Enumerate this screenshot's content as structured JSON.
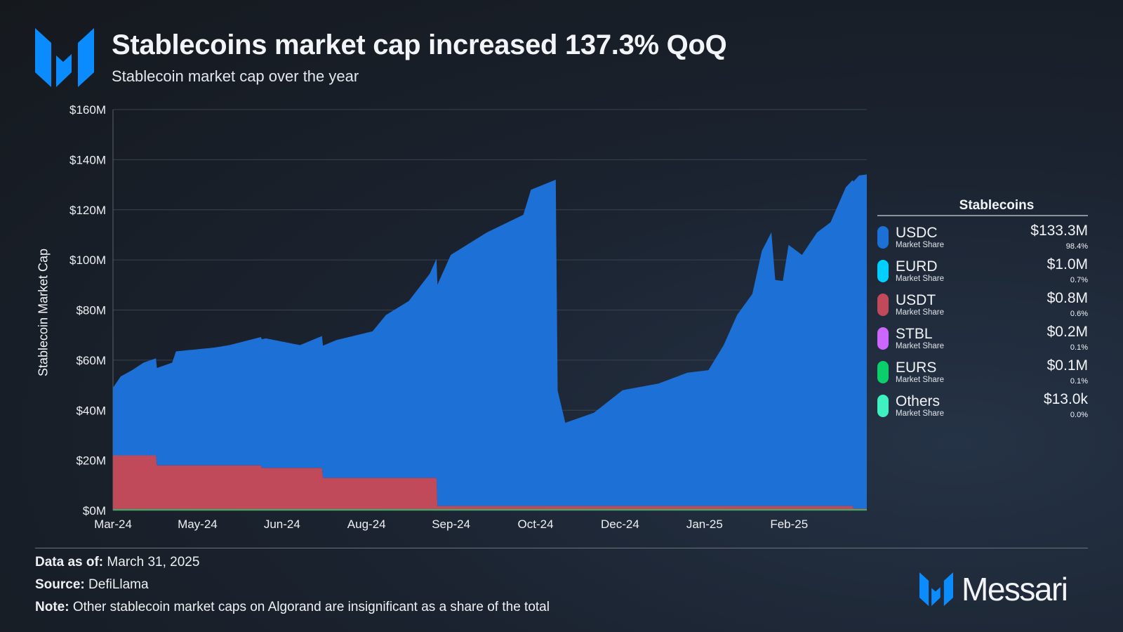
{
  "header": {
    "title": "Stablecoins market cap increased 137.3% QoQ",
    "subtitle": "Stablecoin market cap over the year"
  },
  "colors": {
    "USDC": "#1d71d6",
    "EURD": "#00cfff",
    "USDT": "#c0495a",
    "STBL": "#cc66ff",
    "EURS": "#0acf6a",
    "Others": "#3ff0c0",
    "brand": "#0a8cff"
  },
  "chart_data": {
    "type": "area",
    "stacked": true,
    "ylabel": "Stablecoin Market Cap",
    "ylim": [
      0,
      160
    ],
    "yticks": [
      "$0M",
      "$20M",
      "$40M",
      "$60M",
      "$80M",
      "$100M",
      "$120M",
      "$140M",
      "$160M"
    ],
    "xticks": [
      "Mar-24",
      "May-24",
      "Jun-24",
      "Aug-24",
      "Sep-24",
      "Oct-24",
      "Dec-24",
      "Jan-25",
      "Feb-25"
    ],
    "xrange": [
      "2024-03-01",
      "2025-03-31"
    ],
    "grid": true,
    "series": [
      {
        "name": "USDT",
        "type": "step",
        "points": [
          [
            "2024-03-01",
            22
          ],
          [
            "2024-03-24",
            18
          ],
          [
            "2024-05-18",
            17
          ],
          [
            "2024-06-19",
            13
          ],
          [
            "2024-08-18",
            1.8
          ],
          [
            "2025-03-24",
            0.8
          ],
          [
            "2025-03-31",
            0.8
          ]
        ]
      },
      {
        "name": "USDC",
        "points": [
          [
            "2024-03-01",
            27
          ],
          [
            "2024-03-05",
            31.5
          ],
          [
            "2024-03-11",
            34
          ],
          [
            "2024-03-17",
            37
          ],
          [
            "2024-04-01",
            41
          ],
          [
            "2024-04-03",
            45.5
          ],
          [
            "2024-04-23",
            47
          ],
          [
            "2024-05-01",
            48
          ],
          [
            "2024-05-20",
            51.7
          ],
          [
            "2024-06-07",
            49
          ],
          [
            "2024-06-26",
            55
          ],
          [
            "2024-07-15",
            58.5
          ],
          [
            "2024-07-22",
            65
          ],
          [
            "2024-08-03",
            70.6
          ],
          [
            "2024-08-14",
            81.5
          ],
          [
            "2024-08-25",
            100.2
          ],
          [
            "2024-09-13",
            109.2
          ],
          [
            "2024-10-02",
            116.2
          ],
          [
            "2024-10-06",
            126.2
          ],
          [
            "2024-10-19",
            130.2
          ],
          [
            "2024-10-20",
            46
          ],
          [
            "2024-10-24",
            33.2
          ],
          [
            "2024-11-08",
            37.2
          ],
          [
            "2024-11-23",
            46.2
          ],
          [
            "2024-12-12",
            48.9
          ],
          [
            "2024-12-27",
            53.2
          ],
          [
            "2025-01-07",
            54.2
          ],
          [
            "2025-01-15",
            64.2
          ],
          [
            "2025-01-22",
            76.2
          ],
          [
            "2025-01-30",
            84.6
          ],
          [
            "2025-02-04",
            101.8
          ],
          [
            "2025-02-09",
            109.2
          ],
          [
            "2025-02-11",
            90.2
          ],
          [
            "2025-02-15",
            89.8
          ],
          [
            "2025-02-18",
            104.2
          ],
          [
            "2025-02-25",
            100.2
          ],
          [
            "2025-03-05",
            109.2
          ],
          [
            "2025-03-12",
            113.2
          ],
          [
            "2025-03-20",
            127.2
          ],
          [
            "2025-03-27",
            132.9
          ],
          [
            "2025-03-31",
            133.3
          ]
        ]
      }
    ]
  },
  "legend": {
    "title": "Stablecoins",
    "items": [
      {
        "name": "USDC",
        "sub": "Market Share",
        "value": "$133.3M",
        "share": "98.4%"
      },
      {
        "name": "EURD",
        "sub": "Market Share",
        "value": "$1.0M",
        "share": "0.7%"
      },
      {
        "name": "USDT",
        "sub": "Market Share",
        "value": "$0.8M",
        "share": "0.6%"
      },
      {
        "name": "STBL",
        "sub": "Market Share",
        "value": "$0.2M",
        "share": "0.1%"
      },
      {
        "name": "EURS",
        "sub": "Market Share",
        "value": "$0.1M",
        "share": "0.1%"
      },
      {
        "name": "Others",
        "sub": "Market Share",
        "value": "$13.0k",
        "share": "0.0%"
      }
    ]
  },
  "footer": {
    "data_label": "Data as of:",
    "data_value": " March 31, 2025",
    "source_label": "Source:",
    "source_value": " DefiLlama",
    "note_label": "Note:",
    "note_value": " Other stablecoin market caps on Algorand are insignificant as a share of the total",
    "brand": "Messari"
  }
}
